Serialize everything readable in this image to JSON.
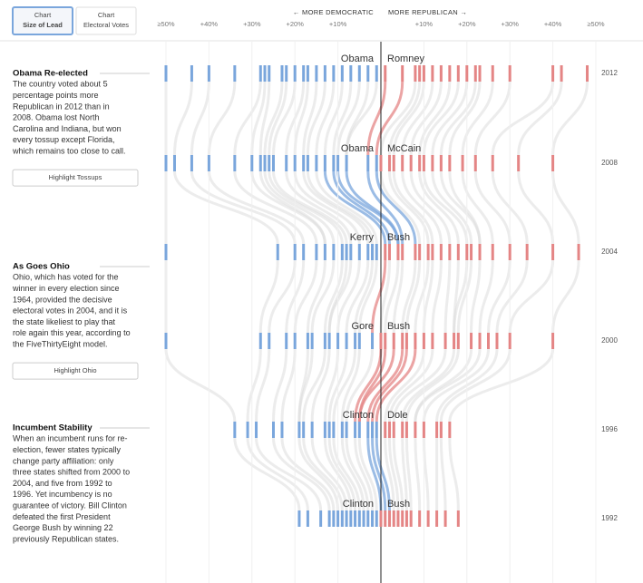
{
  "buttons": [
    {
      "line1": "Chart",
      "line2": "Size of Lead"
    },
    {
      "line1": "Chart",
      "line2": "Electoral Votes"
    }
  ],
  "chart_data": {
    "type": "strip",
    "xlim": [
      -50,
      50
    ],
    "xticks": [
      {
        "value": -50,
        "label": "≥50%"
      },
      {
        "value": -40,
        "label": "+40%"
      },
      {
        "value": -30,
        "label": "+30%"
      },
      {
        "value": -20,
        "label": "+20%"
      },
      {
        "value": -10,
        "label": "+10%"
      },
      {
        "value": 10,
        "label": "+10%"
      },
      {
        "value": 20,
        "label": "+20%"
      },
      {
        "value": 30,
        "label": "+30%"
      },
      {
        "value": 40,
        "label": "+40%"
      },
      {
        "value": 50,
        "label": "≥50%"
      }
    ],
    "left_label": "← MORE DEMOCRATIC",
    "right_label": "MORE REPUBLICAN →",
    "dem_color": "#7aa6dc",
    "rep_color": "#e48585",
    "elections": [
      {
        "year": "2012",
        "dem": "Obama",
        "rep": "Romney",
        "margins": [
          -50,
          -44,
          -40,
          -34,
          -28,
          -27,
          -26,
          -23,
          -22,
          -20,
          -18,
          -17,
          -15,
          -13,
          -11,
          -9,
          -7,
          -5,
          -3,
          -1,
          1,
          5,
          8,
          9,
          10,
          12,
          14,
          16,
          18,
          20,
          22,
          23,
          26,
          30,
          40,
          42,
          48
        ]
      },
      {
        "year": "2008",
        "dem": "Obama",
        "rep": "McCain",
        "margins": [
          -50,
          -48,
          -44,
          -40,
          -34,
          -30,
          -28,
          -27,
          -26,
          -25,
          -22,
          -20,
          -18,
          -17,
          -15,
          -13,
          -11,
          -10,
          -8,
          -3,
          -1,
          0,
          2,
          3,
          5,
          7,
          9,
          10,
          12,
          14,
          16,
          19,
          22,
          26,
          32,
          40
        ]
      },
      {
        "year": "2004",
        "dem": "Kerry",
        "rep": "Bush",
        "margins": [
          -50,
          -24,
          -20,
          -18,
          -15,
          -13,
          -11,
          -9,
          -8,
          -7,
          -5,
          -3,
          -2,
          -1,
          1,
          2,
          4,
          5,
          8,
          9,
          11,
          12,
          14,
          16,
          18,
          20,
          21,
          23,
          26,
          30,
          34,
          40,
          46
        ]
      },
      {
        "year": "2000",
        "dem": "Gore",
        "rep": "Bush",
        "margins": [
          -50,
          -28,
          -26,
          -22,
          -20,
          -17,
          -16,
          -13,
          -12,
          -10,
          -8,
          -6,
          -5,
          -2,
          0,
          1,
          3,
          5,
          6,
          8,
          10,
          12,
          15,
          17,
          18,
          21,
          23,
          25,
          27,
          30,
          40
        ]
      },
      {
        "year": "1996",
        "dem": "Clinton",
        "rep": "Dole",
        "margins": [
          -34,
          -31,
          -29,
          -25,
          -23,
          -19,
          -18,
          -16,
          -13,
          -12,
          -11,
          -9,
          -8,
          -6,
          -5,
          -3,
          -2,
          -1,
          1,
          2,
          3,
          5,
          6,
          8,
          10,
          13,
          14,
          16
        ]
      },
      {
        "year": "1992",
        "dem": "Clinton",
        "rep": "Bush",
        "margins": [
          -19,
          -17,
          -14,
          -12,
          -11,
          -10,
          -9,
          -8,
          -7,
          -6,
          -5,
          -4,
          -3,
          -2,
          -1,
          0,
          1,
          2,
          3,
          4,
          5,
          6,
          7,
          9,
          11,
          13,
          15,
          18
        ]
      }
    ]
  },
  "notes": [
    {
      "title": "Obama Re-elected",
      "lines": [
        "The country voted about 5",
        "percentage points more",
        "Republican in 2012 than in",
        "2008. Obama lost North",
        "Carolina and Indiana, but won",
        "every tossup except Florida,",
        "which remains too close to call."
      ],
      "button": "Highlight Tossups"
    },
    {
      "title": "As Goes Ohio",
      "lines": [
        "Ohio, which has voted for the",
        "winner in every election since",
        "1964, provided the decisive",
        "electoral votes in 2004, and it is",
        "the state likeliest to play that",
        "role again this year, according to",
        "the FiveThirtyEight model."
      ],
      "button": "Highlight Ohio"
    },
    {
      "title": "Incumbent Stability",
      "lines": [
        "When an incumbent runs for re-",
        "election, fewer states typically",
        "change party affiliation: only",
        "three states shifted from 2000 to",
        "2004, and five from 1992 to",
        "1996. Yet incumbency is no",
        "guarantee of victory. Bill Clinton",
        "defeated the first President",
        "George Bush by winning 22",
        "previously Republican states."
      ]
    }
  ]
}
